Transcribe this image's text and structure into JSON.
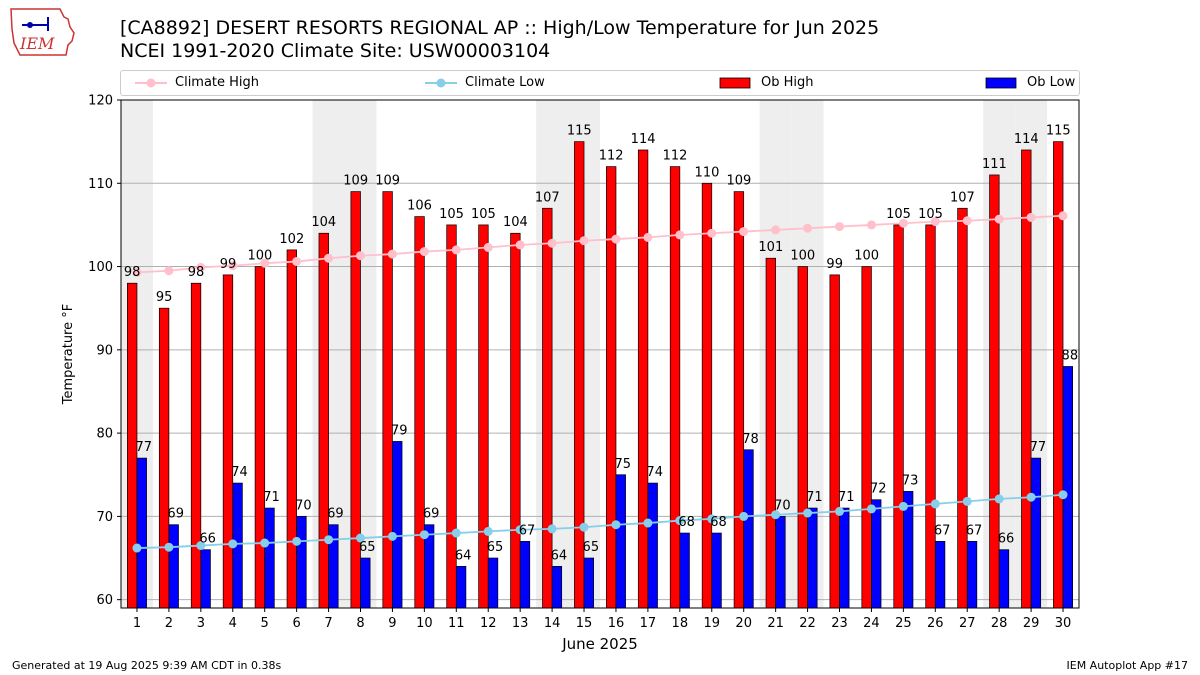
{
  "header": {
    "title": "[CA8892] DESERT RESORTS REGIONAL AP :: High/Low Temperature for Jun 2025",
    "subtitle": "NCEI 1991-2020 Climate Site: USW00003104",
    "logo_text": "IEM"
  },
  "legend": {
    "climate_high": "Climate High",
    "climate_low": "Climate Low",
    "ob_high": "Ob High",
    "ob_low": "Ob Low"
  },
  "footer": {
    "generated": "Generated at 19 Aug 2025 9:39 AM CDT in 0.38s",
    "app": "IEM Autoplot App #17"
  },
  "colors": {
    "ob_high": "#ff0000",
    "ob_low": "#0000ff",
    "climate_high": "#ffc0cb",
    "climate_low": "#87ceeb",
    "weekend_band": "#eeeeee"
  },
  "chart_data": {
    "type": "bar",
    "title": "[CA8892] DESERT RESORTS REGIONAL AP :: High/Low Temperature for Jun 2025",
    "xlabel": "June 2025",
    "ylabel": "Temperature °F",
    "ylim": [
      59,
      120
    ],
    "yticks": [
      60,
      70,
      80,
      90,
      100,
      110,
      120
    ],
    "grid": true,
    "legend_position": "top",
    "categories": [
      "1",
      "2",
      "3",
      "4",
      "5",
      "6",
      "7",
      "8",
      "9",
      "10",
      "11",
      "12",
      "13",
      "14",
      "15",
      "16",
      "17",
      "18",
      "19",
      "20",
      "21",
      "22",
      "23",
      "24",
      "25",
      "26",
      "27",
      "28",
      "29",
      "30"
    ],
    "weekend_days": [
      1,
      7,
      8,
      14,
      15,
      21,
      22,
      28,
      29
    ],
    "series": [
      {
        "name": "Ob High",
        "type": "bar",
        "values": [
          98,
          95,
          98,
          99,
          100,
          102,
          104,
          109,
          109,
          106,
          105,
          105,
          104,
          107,
          115,
          112,
          114,
          112,
          110,
          109,
          101,
          100,
          99,
          100,
          105,
          105,
          107,
          111,
          114,
          115
        ]
      },
      {
        "name": "Ob Low",
        "type": "bar",
        "values": [
          77,
          69,
          66,
          74,
          71,
          70,
          69,
          65,
          79,
          69,
          64,
          65,
          67,
          64,
          65,
          75,
          74,
          68,
          68,
          78,
          70,
          71,
          71,
          72,
          73,
          67,
          67,
          66,
          77,
          88
        ]
      },
      {
        "name": "Climate High",
        "type": "line",
        "values": [
          99.3,
          99.5,
          99.9,
          100.1,
          100.4,
          100.6,
          101.0,
          101.3,
          101.5,
          101.8,
          102.0,
          102.3,
          102.6,
          102.8,
          103.1,
          103.3,
          103.5,
          103.8,
          104.0,
          104.2,
          104.4,
          104.6,
          104.8,
          105.0,
          105.2,
          105.4,
          105.5,
          105.7,
          105.9,
          106.1
        ]
      },
      {
        "name": "Climate Low",
        "type": "line",
        "values": [
          66.2,
          66.3,
          66.5,
          66.7,
          66.8,
          67.0,
          67.2,
          67.4,
          67.6,
          67.8,
          68.0,
          68.2,
          68.4,
          68.5,
          68.7,
          69.0,
          69.2,
          69.5,
          69.7,
          70.0,
          70.2,
          70.4,
          70.6,
          70.9,
          71.2,
          71.5,
          71.8,
          72.1,
          72.3,
          72.6
        ]
      }
    ]
  }
}
